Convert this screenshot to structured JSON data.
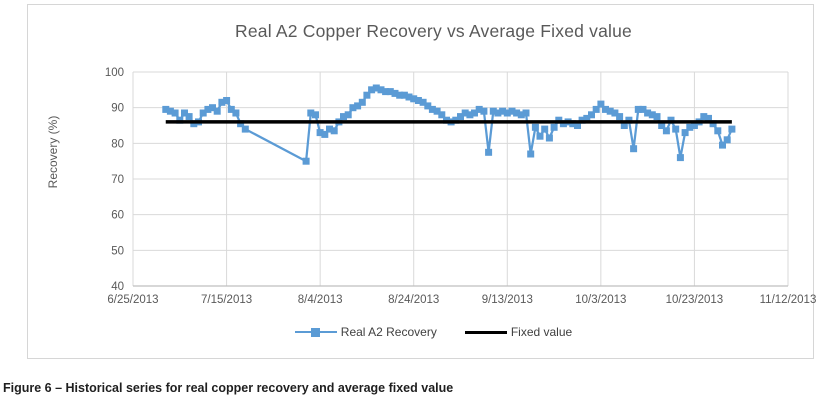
{
  "figure_caption": "Figure 6 – Historical series for real copper recovery and average fixed value",
  "chart_data": {
    "type": "line",
    "title": "Real A2 Copper Recovery vs Average Fixed value",
    "xlabel": "",
    "ylabel": "Recovery (%)",
    "ylim": [
      40,
      100
    ],
    "y_ticks": [
      40,
      50,
      60,
      70,
      80,
      90,
      100
    ],
    "x_range": [
      "6/25/2013",
      "11/12/2013"
    ],
    "x_ticks": [
      "6/25/2013",
      "7/15/2013",
      "8/4/2013",
      "8/24/2013",
      "9/13/2013",
      "10/3/2013",
      "10/23/2013",
      "11/12/2013"
    ],
    "grid": true,
    "legend_position": "bottom",
    "colors": {
      "series_blue": "#5B9BD5",
      "fixed_black": "#000000",
      "gridline": "#D9D9D9",
      "axis_line": "#BFBFBF",
      "tick_text": "#595959"
    },
    "series": [
      {
        "name": "Real A2 Recovery",
        "type": "line",
        "marker": "square",
        "color": "#5B9BD5",
        "points": [
          [
            "7/2/2013",
            89.5
          ],
          [
            "7/3/2013",
            89
          ],
          [
            "7/4/2013",
            88.5
          ],
          [
            "7/5/2013",
            86.5
          ],
          [
            "7/6/2013",
            88.5
          ],
          [
            "7/7/2013",
            87.5
          ],
          [
            "7/8/2013",
            85.5
          ],
          [
            "7/9/2013",
            86
          ],
          [
            "7/10/2013",
            88.5
          ],
          [
            "7/11/2013",
            89.5
          ],
          [
            "7/12/2013",
            90
          ],
          [
            "7/13/2013",
            89
          ],
          [
            "7/14/2013",
            91.5
          ],
          [
            "7/15/2013",
            92
          ],
          [
            "7/16/2013",
            89.5
          ],
          [
            "7/17/2013",
            88.5
          ],
          [
            "7/18/2013",
            85.5
          ],
          [
            "7/19/2013",
            84
          ],
          [
            "8/1/2013",
            75
          ],
          [
            "8/2/2013",
            88.5
          ],
          [
            "8/3/2013",
            88
          ],
          [
            "8/4/2013",
            83
          ],
          [
            "8/5/2013",
            82.5
          ],
          [
            "8/6/2013",
            84
          ],
          [
            "8/7/2013",
            83.5
          ],
          [
            "8/8/2013",
            86
          ],
          [
            "8/9/2013",
            87.5
          ],
          [
            "8/10/2013",
            88
          ],
          [
            "8/11/2013",
            90
          ],
          [
            "8/12/2013",
            90.5
          ],
          [
            "8/13/2013",
            91.5
          ],
          [
            "8/14/2013",
            93.5
          ],
          [
            "8/15/2013",
            95
          ],
          [
            "8/16/2013",
            95.5
          ],
          [
            "8/17/2013",
            95
          ],
          [
            "8/18/2013",
            94.5
          ],
          [
            "8/19/2013",
            94.5
          ],
          [
            "8/20/2013",
            94
          ],
          [
            "8/21/2013",
            93.5
          ],
          [
            "8/22/2013",
            93.5
          ],
          [
            "8/23/2013",
            93
          ],
          [
            "8/24/2013",
            92.5
          ],
          [
            "8/25/2013",
            92
          ],
          [
            "8/26/2013",
            91.5
          ],
          [
            "8/27/2013",
            90.5
          ],
          [
            "8/28/2013",
            89.5
          ],
          [
            "8/29/2013",
            89
          ],
          [
            "8/30/2013",
            88
          ],
          [
            "8/31/2013",
            86.5
          ],
          [
            "9/1/2013",
            86
          ],
          [
            "9/2/2013",
            86.5
          ],
          [
            "9/3/2013",
            87.5
          ],
          [
            "9/4/2013",
            88.5
          ],
          [
            "9/5/2013",
            88
          ],
          [
            "9/6/2013",
            88.5
          ],
          [
            "9/7/2013",
            89.5
          ],
          [
            "9/8/2013",
            89
          ],
          [
            "9/9/2013",
            77.5
          ],
          [
            "9/10/2013",
            89
          ],
          [
            "9/11/2013",
            88.5
          ],
          [
            "9/12/2013",
            89
          ],
          [
            "9/13/2013",
            88.5
          ],
          [
            "9/14/2013",
            89
          ],
          [
            "9/15/2013",
            88.5
          ],
          [
            "9/16/2013",
            88
          ],
          [
            "9/17/2013",
            88.5
          ],
          [
            "9/18/2013",
            77
          ],
          [
            "9/19/2013",
            84.5
          ],
          [
            "9/20/2013",
            82
          ],
          [
            "9/21/2013",
            84
          ],
          [
            "9/22/2013",
            81.5
          ],
          [
            "9/23/2013",
            84.5
          ],
          [
            "9/24/2013",
            86.5
          ],
          [
            "9/25/2013",
            85.5
          ],
          [
            "9/26/2013",
            86
          ],
          [
            "9/27/2013",
            85.5
          ],
          [
            "9/28/2013",
            85
          ],
          [
            "9/29/2013",
            86.5
          ],
          [
            "9/30/2013",
            87
          ],
          [
            "10/1/2013",
            88
          ],
          [
            "10/2/2013",
            89.5
          ],
          [
            "10/3/2013",
            91
          ],
          [
            "10/4/2013",
            89.5
          ],
          [
            "10/5/2013",
            89
          ],
          [
            "10/6/2013",
            88.5
          ],
          [
            "10/7/2013",
            87.5
          ],
          [
            "10/8/2013",
            85
          ],
          [
            "10/9/2013",
            86.5
          ],
          [
            "10/10/2013",
            78.5
          ],
          [
            "10/11/2013",
            89.5
          ],
          [
            "10/12/2013",
            89.5
          ],
          [
            "10/13/2013",
            88.5
          ],
          [
            "10/14/2013",
            88
          ],
          [
            "10/15/2013",
            87.5
          ],
          [
            "10/16/2013",
            85
          ],
          [
            "10/17/2013",
            83.5
          ],
          [
            "10/18/2013",
            86.5
          ],
          [
            "10/19/2013",
            84
          ],
          [
            "10/20/2013",
            76
          ],
          [
            "10/21/2013",
            83
          ],
          [
            "10/22/2013",
            84.5
          ],
          [
            "10/23/2013",
            85
          ],
          [
            "10/24/2013",
            86
          ],
          [
            "10/25/2013",
            87.5
          ],
          [
            "10/26/2013",
            87
          ],
          [
            "10/27/2013",
            85.5
          ],
          [
            "10/28/2013",
            83.5
          ],
          [
            "10/29/2013",
            79.5
          ],
          [
            "10/30/2013",
            81
          ],
          [
            "10/31/2013",
            84
          ]
        ]
      },
      {
        "name": "Fixed value",
        "type": "constant",
        "color": "#000000",
        "value": 86,
        "x_start": "7/2/2013",
        "x_end": "10/31/2013"
      }
    ]
  }
}
